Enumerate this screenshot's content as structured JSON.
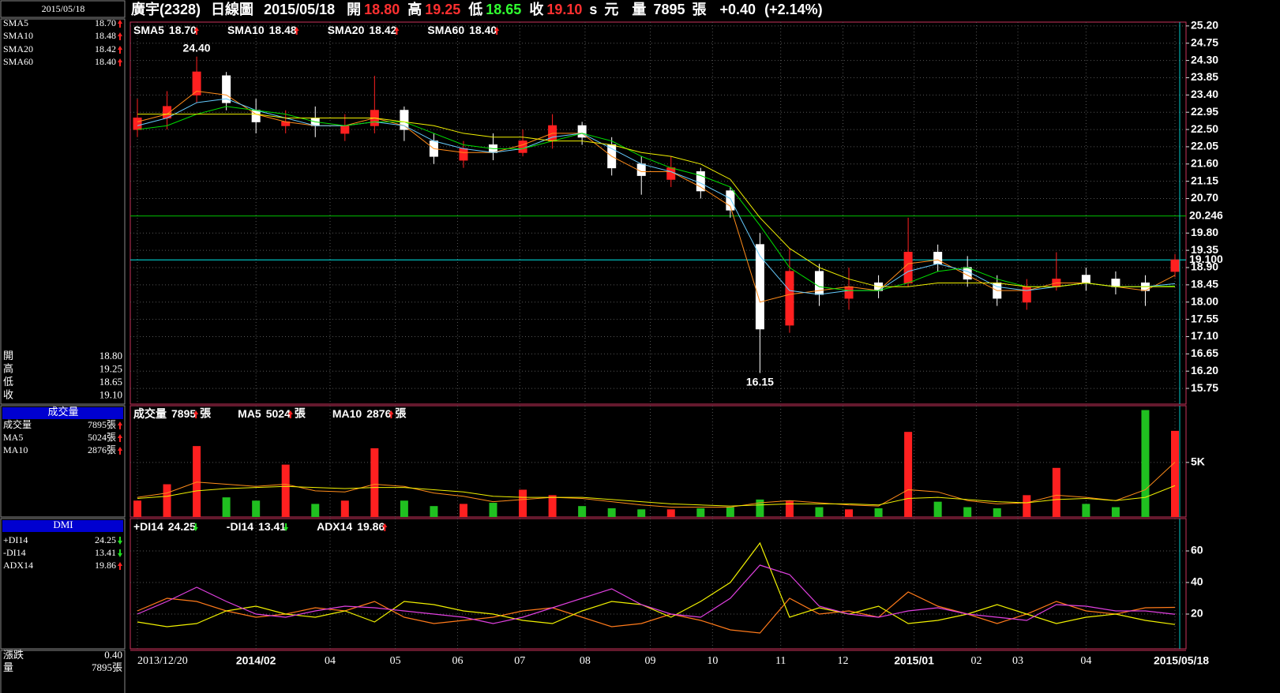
{
  "header": {
    "name": "廣宇(2328)",
    "period": "日線圖",
    "date": "2015/05/18",
    "fields": [
      {
        "label": "開",
        "value": "18.80",
        "color": "#ff3030"
      },
      {
        "label": "高",
        "value": "19.25",
        "color": "#ff3030"
      },
      {
        "label": "低",
        "value": "18.65",
        "color": "#30ff30"
      },
      {
        "label": "收",
        "value": "19.10",
        "color": "#ff3030"
      }
    ],
    "currency_mark": "s",
    "currency": "元",
    "volume_label": "量",
    "volume": "7895",
    "volume_unit": "張",
    "change": "+0.40",
    "change_pct": "(+2.14%)"
  },
  "left_panel": {
    "change_label": "漲跌",
    "change": "0.40"
  },
  "chart_data": [
    {
      "type": "candlestick",
      "up_color": "#ff2020",
      "down_color": "#ffffff",
      "xlim": [
        0,
        35
      ],
      "open": [
        22.5,
        22.8,
        23.4,
        23.9,
        23.0,
        22.6,
        22.8,
        22.4,
        22.6,
        23.0,
        22.2,
        21.7,
        22.1,
        21.9,
        22.2,
        22.6,
        22.1,
        21.6,
        21.2,
        21.4,
        20.9,
        19.5,
        17.4,
        18.8,
        18.1,
        18.5,
        18.5,
        19.3,
        18.9,
        18.5,
        18.0,
        18.4,
        18.7,
        18.6,
        18.5,
        18.8
      ],
      "high": [
        23.3,
        23.5,
        24.4,
        24.0,
        23.3,
        23.0,
        23.1,
        22.9,
        23.9,
        23.1,
        22.4,
        22.2,
        22.4,
        22.5,
        22.9,
        22.7,
        22.3,
        21.8,
        21.8,
        21.5,
        21.0,
        19.8,
        19.4,
        19.0,
        18.9,
        18.7,
        20.2,
        19.5,
        19.2,
        18.7,
        18.6,
        19.3,
        18.9,
        18.8,
        18.7,
        19.25
      ],
      "low": [
        22.3,
        22.5,
        23.2,
        23.0,
        22.4,
        22.4,
        22.3,
        22.2,
        22.4,
        22.2,
        21.6,
        21.5,
        21.7,
        21.8,
        22.0,
        22.1,
        21.3,
        20.8,
        21.0,
        20.7,
        20.2,
        16.15,
        17.2,
        17.9,
        17.8,
        18.1,
        18.4,
        18.8,
        18.4,
        17.9,
        17.8,
        18.3,
        18.3,
        18.2,
        17.9,
        18.65
      ],
      "close": [
        22.8,
        23.1,
        24.0,
        23.2,
        22.7,
        22.7,
        22.6,
        22.6,
        23.0,
        22.5,
        21.8,
        22.0,
        21.9,
        22.2,
        22.6,
        22.3,
        21.5,
        21.3,
        21.5,
        20.9,
        20.4,
        17.3,
        18.8,
        18.2,
        18.4,
        18.3,
        19.3,
        19.0,
        18.6,
        18.1,
        18.4,
        18.6,
        18.5,
        18.4,
        18.3,
        19.1
      ],
      "extreme_labels": {
        "high": "24.40",
        "low": "16.15"
      },
      "series": [
        {
          "name": "SMA5",
          "color": "#ff8c1a",
          "value_label": "18.70",
          "trend": "up",
          "values": [
            22.7,
            22.9,
            23.5,
            23.4,
            22.9,
            22.7,
            22.6,
            22.6,
            22.8,
            22.6,
            22.0,
            21.9,
            21.9,
            22.1,
            22.4,
            22.4,
            21.8,
            21.4,
            21.4,
            21.0,
            20.5,
            18.0,
            18.2,
            18.3,
            18.4,
            18.3,
            19.0,
            19.1,
            18.7,
            18.3,
            18.3,
            18.5,
            18.5,
            18.4,
            18.3,
            18.7
          ]
        },
        {
          "name": "SMA10",
          "color": "#66ccff",
          "value_label": "18.48",
          "trend": "up",
          "values": [
            22.6,
            22.8,
            23.2,
            23.3,
            23.0,
            22.8,
            22.6,
            22.6,
            22.7,
            22.6,
            22.2,
            22.0,
            21.9,
            22.0,
            22.3,
            22.4,
            22.0,
            21.6,
            21.4,
            21.1,
            20.7,
            19.2,
            18.3,
            18.2,
            18.3,
            18.3,
            18.8,
            19.0,
            18.8,
            18.4,
            18.3,
            18.4,
            18.5,
            18.4,
            18.4,
            18.48
          ]
        },
        {
          "name": "SMA20",
          "color": "#00e000",
          "value_label": "18.42",
          "trend": "up",
          "values": [
            22.5,
            22.6,
            22.9,
            23.1,
            23.0,
            22.9,
            22.7,
            22.6,
            22.7,
            22.7,
            22.4,
            22.1,
            22.0,
            22.0,
            22.2,
            22.4,
            22.2,
            21.8,
            21.5,
            21.3,
            21.0,
            20.0,
            18.9,
            18.4,
            18.3,
            18.3,
            18.5,
            18.8,
            18.9,
            18.6,
            18.4,
            18.4,
            18.5,
            18.4,
            18.4,
            18.42
          ]
        },
        {
          "name": "SMA60",
          "color": "#f0f000",
          "value_label": "18.40",
          "trend": "up",
          "values": [
            22.9,
            22.9,
            22.9,
            22.9,
            22.9,
            22.8,
            22.8,
            22.8,
            22.8,
            22.7,
            22.6,
            22.4,
            22.3,
            22.3,
            22.2,
            22.2,
            22.1,
            21.9,
            21.8,
            21.6,
            21.2,
            20.2,
            19.4,
            18.9,
            18.6,
            18.4,
            18.4,
            18.5,
            18.5,
            18.5,
            18.4,
            18.4,
            18.5,
            18.4,
            18.4,
            18.4
          ]
        }
      ],
      "ylim": [
        15.34,
        25.3
      ],
      "yticks": [
        {
          "value": 25.2,
          "label": "25.20"
        },
        24.75,
        {
          "value": 24.3,
          "label": "24.30"
        },
        23.85,
        {
          "value": 23.4,
          "label": "23.40"
        },
        22.95,
        {
          "value": 22.5,
          "label": "22.50"
        },
        22.05,
        {
          "value": 21.6,
          "label": "21.60"
        },
        21.15,
        {
          "value": 20.7,
          "label": "20.70"
        },
        {
          "value": 19.8,
          "label": "19.80"
        },
        19.35,
        {
          "value": 18.9,
          "label": "18.90"
        },
        18.45,
        {
          "value": 18,
          "label": "18.00"
        },
        17.55,
        {
          "value": 17.1,
          "label": "17.10"
        },
        16.65,
        {
          "value": 16.2,
          "label": "16.20"
        },
        15.75
      ],
      "hlines": [
        {
          "value": 20.246,
          "label": "20.246",
          "color": "#00c000"
        },
        {
          "value": 19.1,
          "label": "19.100",
          "color": "#00e8e8"
        }
      ]
    },
    {
      "type": "bar",
      "title": "成交量",
      "xlim": [
        0,
        35
      ],
      "up_color": "#ff2020",
      "down_color": "#20c020",
      "series": [
        {
          "name": "成交量",
          "color": "#ffffff",
          "value_label": "7895",
          "unit": "張",
          "trend": "up",
          "values": [
            1500,
            3000,
            6500,
            1800,
            1500,
            4800,
            1200,
            1500,
            6300,
            1500,
            1000,
            1200,
            1300,
            2500,
            2000,
            1000,
            800,
            700,
            700,
            800,
            900,
            1600,
            1500,
            900,
            700,
            800,
            7800,
            1400,
            900,
            800,
            2000,
            4500,
            1200,
            900,
            9800,
            7895
          ]
        },
        {
          "name": "MA5",
          "color": "#ff8c1a",
          "value_label": "5024",
          "unit": "張",
          "trend": "up",
          "values": [
            1800,
            2200,
            3200,
            3000,
            2800,
            3000,
            2400,
            2300,
            3000,
            2800,
            2200,
            1900,
            1400,
            1600,
            1800,
            1700,
            1400,
            1100,
            900,
            900,
            900,
            1300,
            1500,
            1300,
            1100,
            1000,
            2500,
            2300,
            1500,
            1200,
            1300,
            2000,
            1800,
            1500,
            2500,
            5024
          ]
        },
        {
          "name": "MA10",
          "color": "#f0f000",
          "value_label": "2876",
          "unit": "張",
          "trend": "up",
          "values": [
            1700,
            1900,
            2400,
            2600,
            2700,
            2800,
            2700,
            2600,
            2700,
            2700,
            2500,
            2300,
            1900,
            1800,
            1800,
            1800,
            1600,
            1400,
            1200,
            1100,
            1000,
            1100,
            1200,
            1200,
            1200,
            1100,
            1700,
            1800,
            1600,
            1400,
            1300,
            1600,
            1700,
            1500,
            1800,
            2876
          ]
        }
      ],
      "ylim": [
        0,
        10200
      ],
      "yticks": [
        {
          "value": 5000,
          "label": "5K"
        }
      ]
    },
    {
      "type": "line",
      "title": "DMI",
      "xlim": [
        0,
        35
      ],
      "series": [
        {
          "name": "+DI14",
          "color": "#ff7a1a",
          "value_label": "24.25",
          "trend": "down",
          "values": [
            22,
            30,
            28,
            22,
            18,
            20,
            24,
            22,
            28,
            18,
            14,
            16,
            18,
            22,
            24,
            18,
            12,
            14,
            20,
            16,
            10,
            8,
            30,
            20,
            22,
            18,
            34,
            25,
            20,
            14,
            20,
            28,
            22,
            20,
            24,
            24.25
          ]
        },
        {
          "name": "-DI14",
          "color": "#f0f000",
          "value_label": "13.41",
          "trend": "down",
          "values": [
            15,
            12,
            14,
            22,
            25,
            20,
            18,
            22,
            15,
            28,
            26,
            22,
            20,
            16,
            14,
            22,
            28,
            26,
            18,
            28,
            40,
            65,
            18,
            24,
            20,
            25,
            14,
            16,
            20,
            26,
            20,
            14,
            18,
            20,
            16,
            13.41
          ]
        },
        {
          "name": "ADX14",
          "color": "#e040e0",
          "value_label": "19.86",
          "trend": "up",
          "values": [
            20,
            28,
            37,
            28,
            20,
            18,
            22,
            25,
            24,
            22,
            20,
            18,
            14,
            18,
            24,
            30,
            36,
            26,
            20,
            18,
            30,
            51,
            45,
            25,
            20,
            18,
            22,
            24,
            20,
            18,
            16,
            26,
            25,
            22,
            22,
            19.86
          ]
        }
      ],
      "ylim": [
        -2,
        80.5
      ],
      "yticks": [
        20,
        40,
        60
      ],
      "xticks": [
        {
          "value": 0,
          "label": "2013/12/20"
        },
        {
          "value": 4,
          "label": "2014/02"
        },
        {
          "value": 6.5,
          "label": "04"
        },
        {
          "value": 8.7,
          "label": "05"
        },
        {
          "value": 10.8,
          "label": "06"
        },
        {
          "value": 12.9,
          "label": "07"
        },
        {
          "value": 15.1,
          "label": "08"
        },
        {
          "value": 17.3,
          "label": "09"
        },
        {
          "value": 19.4,
          "label": "10"
        },
        {
          "value": 21.7,
          "label": "11"
        },
        {
          "value": 23.8,
          "label": "12"
        },
        {
          "value": 26.2,
          "label": "2015/01"
        },
        {
          "value": 28.3,
          "label": "02"
        },
        {
          "value": 29.7,
          "label": "03"
        },
        {
          "value": 32,
          "label": "04"
        },
        {
          "value": 35,
          "label": "2015/05/18"
        }
      ]
    }
  ]
}
